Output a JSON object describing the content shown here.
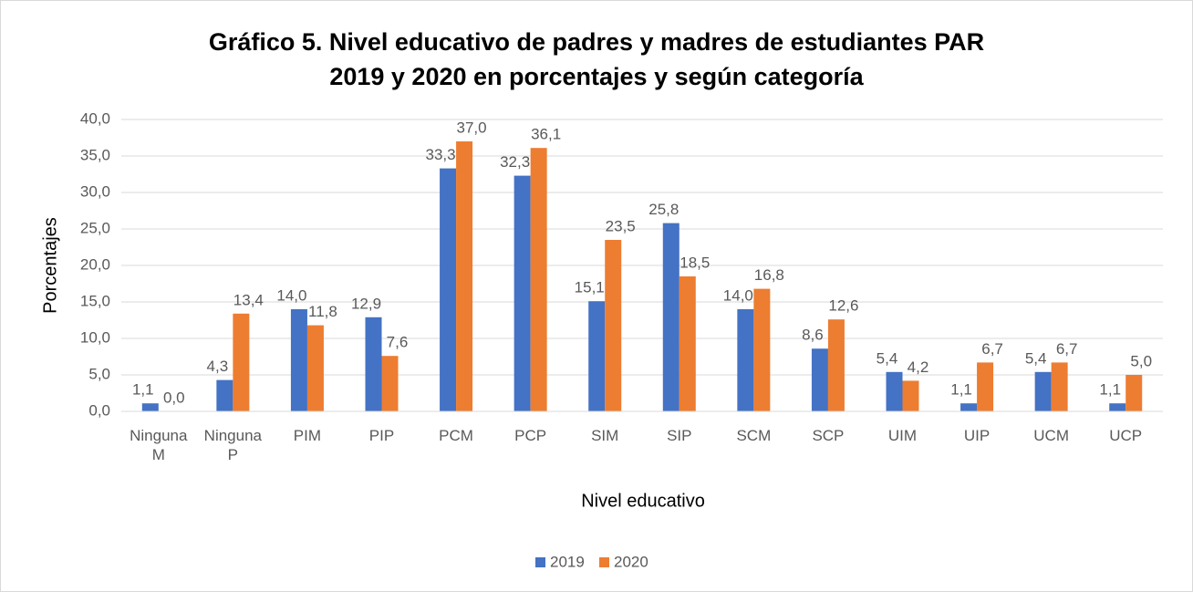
{
  "chart_data": {
    "type": "bar",
    "title": [
      "Gráfico 5. Nivel educativo de padres y madres de estudiantes PAR",
      "2019 y 2020 en porcentajes y según categoría"
    ],
    "x_label": "Nivel educativo",
    "y_label": "Porcentajes",
    "categories": [
      "Ninguna M",
      "Ninguna P",
      "PIM",
      "PIP",
      "PCM",
      "PCP",
      "SIM",
      "SIP",
      "SCM",
      "SCP",
      "UIM",
      "UIP",
      "UCM",
      "UCP"
    ],
    "series": [
      {
        "name": "2019",
        "color": "#4472c4",
        "values": [
          1.1,
          4.3,
          14.0,
          12.9,
          33.3,
          32.3,
          15.1,
          25.8,
          14.0,
          8.6,
          5.4,
          1.1,
          5.4,
          1.1
        ],
        "value_labels": [
          "1,1",
          "4,3",
          "14,0",
          "12,9",
          "33,3",
          "32,3",
          "15,1",
          "25,8",
          "14,0",
          "8,6",
          "5,4",
          "1,1",
          "5,4",
          "1,1"
        ]
      },
      {
        "name": "2020",
        "color": "#ed7d31",
        "values": [
          0.0,
          13.4,
          11.8,
          7.6,
          37.0,
          36.1,
          23.5,
          18.5,
          16.8,
          12.6,
          4.2,
          6.7,
          6.7,
          5.0
        ],
        "value_labels": [
          "0,0",
          "13,4",
          "11,8",
          "7,6",
          "37,0",
          "36,1",
          "23,5",
          "18,5",
          "16,8",
          "12,6",
          "4,2",
          "6,7",
          "6,7",
          "5,0"
        ]
      }
    ],
    "ylim": [
      0,
      40
    ],
    "yticks": [
      {
        "value": 0,
        "label": "0,0"
      },
      {
        "value": 5,
        "label": "5,0"
      },
      {
        "value": 10,
        "label": "10,0"
      },
      {
        "value": 15,
        "label": "15,0"
      },
      {
        "value": 20,
        "label": "20,0"
      },
      {
        "value": 25,
        "label": "25,0"
      },
      {
        "value": 30,
        "label": "30,0"
      },
      {
        "value": 35,
        "label": "35,0"
      },
      {
        "value": 40,
        "label": "40,0"
      }
    ],
    "grid": true,
    "legend": "bottom"
  }
}
